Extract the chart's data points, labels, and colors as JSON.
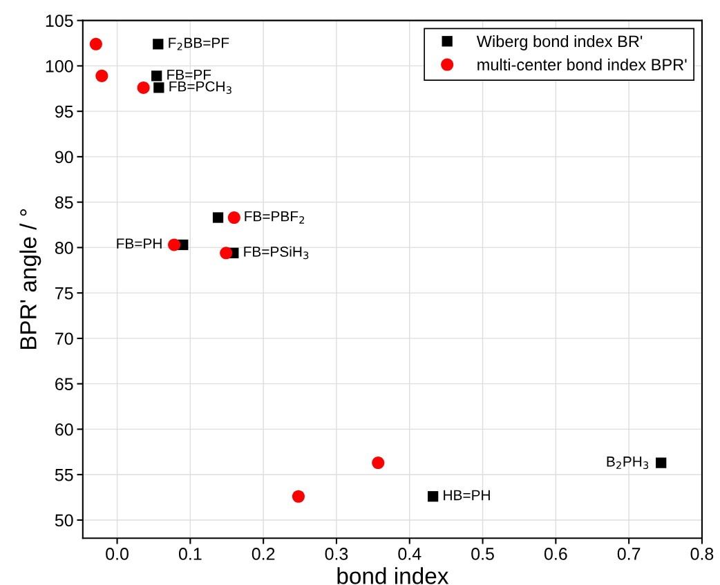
{
  "chart_data": {
    "type": "scatter",
    "xlabel": "bond index",
    "ylabel": "BPR' angle / °",
    "series": [
      {
        "name": "Wiberg bond index BR'",
        "color": "#000000",
        "marker": "square",
        "x": [
          0.056,
          0.054,
          0.057,
          0.138,
          0.09,
          0.159,
          0.432,
          0.744
        ],
        "values": [
          102.4,
          98.9,
          97.6,
          83.3,
          80.3,
          79.4,
          52.6,
          56.3
        ]
      },
      {
        "name": "multi-center bond index BPR'",
        "color": "#ff0000",
        "marker": "circle",
        "x": [
          -0.029,
          -0.021,
          0.036,
          0.16,
          0.078,
          0.149,
          0.357,
          0.248
        ],
        "values": [
          102.4,
          98.9,
          97.6,
          83.3,
          80.3,
          79.4,
          56.3,
          52.6
        ]
      }
    ],
    "annotations": [
      {
        "text": "F$_{2}$BB=PF",
        "x": 0.056,
        "y": 102.4
      },
      {
        "text": "FB=PF",
        "x": 0.054,
        "y": 98.9
      },
      {
        "text": "FB=PCH$_{3}$",
        "x": 0.057,
        "y": 97.6
      },
      {
        "text": "FB=PBF$_{2}$",
        "x": 0.16,
        "y": 83.3
      },
      {
        "text": "FB=PH",
        "x": 0.078,
        "y": 80.3
      },
      {
        "text": "FB=PSiH$_{3}$",
        "x": 0.159,
        "y": 79.4
      },
      {
        "text": "HB=PH",
        "x": 0.432,
        "y": 52.6
      },
      {
        "text": "B$_{2}$PH$_{3}$",
        "x": 0.744,
        "y": 56.3
      }
    ],
    "xlim": [
      -0.047,
      0.8
    ],
    "ylim": [
      48,
      105
    ],
    "xticks": [
      {
        "value": 0.0,
        "label": "0.0"
      },
      {
        "value": 0.1,
        "label": "0.1"
      },
      {
        "value": 0.2,
        "label": "0.2"
      },
      {
        "value": 0.3,
        "label": "0.3"
      },
      {
        "value": 0.4,
        "label": "0.4"
      },
      {
        "value": 0.5,
        "label": "0.5"
      },
      {
        "value": 0.6,
        "label": "0.6"
      },
      {
        "value": 0.7,
        "label": "0.7"
      },
      {
        "value": 0.8,
        "label": "0.8"
      }
    ],
    "yticks": [
      50,
      55,
      60,
      65,
      70,
      75,
      80,
      85,
      90,
      95,
      100,
      105
    ],
    "grid": true,
    "legend": "top right"
  }
}
